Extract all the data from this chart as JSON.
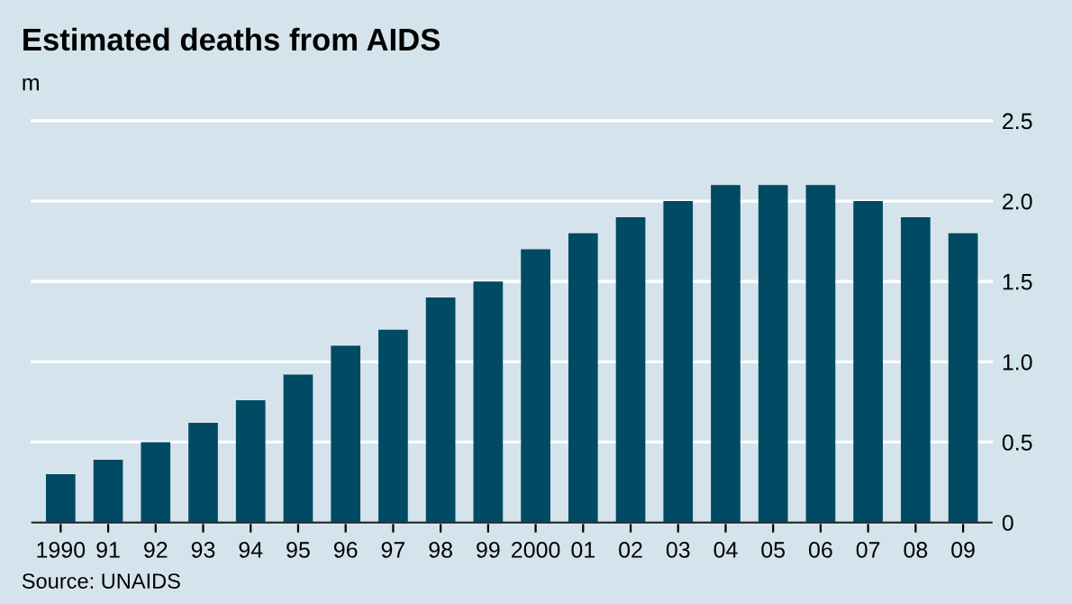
{
  "chart_data": {
    "type": "bar",
    "title": "Estimated deaths from AIDS",
    "ylabel": "m",
    "categories": [
      "1990",
      "91",
      "92",
      "93",
      "94",
      "95",
      "96",
      "97",
      "98",
      "99",
      "2000",
      "01",
      "02",
      "03",
      "04",
      "05",
      "06",
      "07",
      "08",
      "09"
    ],
    "values": [
      0.3,
      0.39,
      0.5,
      0.62,
      0.76,
      0.92,
      1.1,
      1.2,
      1.4,
      1.5,
      1.7,
      1.8,
      1.9,
      2.0,
      2.1,
      2.1,
      2.1,
      2.0,
      1.9,
      1.8
    ],
    "color": "#004a64",
    "ylim": [
      0,
      2.5
    ],
    "yticks": [
      0,
      0.5,
      {
        "value": 1.0,
        "label": "1.0"
      },
      1.5,
      {
        "value": 2.0,
        "label": "2.0"
      },
      2.5
    ],
    "grid": "y",
    "annotations": [
      "Source: UNAIDS"
    ]
  }
}
